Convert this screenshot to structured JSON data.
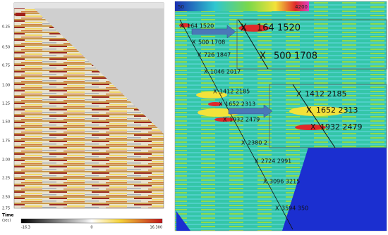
{
  "left_panel": {
    "time_ticks": [
      "0.25",
      "0.50",
      "0.75",
      "1.00",
      "1.25",
      "1.50",
      "1.75",
      "2.00",
      "2.25",
      "2.50",
      "2.75"
    ],
    "axis_title": "Time",
    "axis_unit": "(sec)",
    "colorbar_labels": [
      "-16.3",
      "0",
      "16.300"
    ]
  },
  "right_panel": {
    "colorbar_labels": [
      "50",
      "4200"
    ],
    "picks": [
      "164  1520",
      "500  1708",
      "726  1847",
      "1046  2017",
      "1412  2185",
      "1652  2313",
      "1932  2479",
      "2380  2",
      "2724  2991",
      "3096  3215",
      "3594  350"
    ]
  },
  "zoom_insets": [
    {
      "picks": [
        "164  1520",
        "500  1708"
      ]
    },
    {
      "picks": [
        "1412  2185",
        "1652  2313",
        "1932  2479"
      ]
    }
  ]
}
